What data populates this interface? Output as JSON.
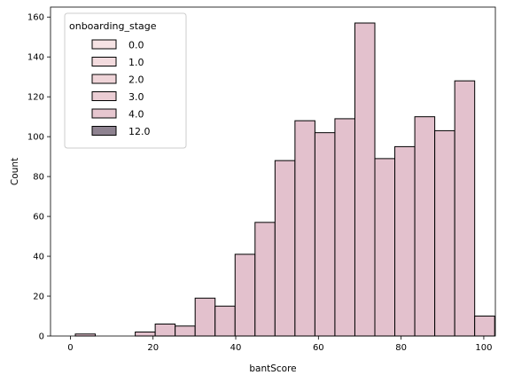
{
  "chart_data": {
    "type": "bar",
    "subtype": "histogram",
    "xlabel": "bantScore",
    "ylabel": "Count",
    "xlim": [
      -4.8,
      102.8
    ],
    "ylim": [
      0,
      165
    ],
    "xticks": [
      0,
      20,
      40,
      60,
      80,
      100
    ],
    "yticks": [
      0,
      20,
      40,
      60,
      80,
      100,
      120,
      140,
      160
    ],
    "bin_width": 4.83,
    "bins": [
      {
        "x0": 1.2,
        "x1": 6.03,
        "count": 1
      },
      {
        "x0": 6.03,
        "x1": 10.86,
        "count": 0
      },
      {
        "x0": 10.86,
        "x1": 15.69,
        "count": 0
      },
      {
        "x0": 15.69,
        "x1": 20.52,
        "count": 2
      },
      {
        "x0": 20.52,
        "x1": 25.35,
        "count": 6
      },
      {
        "x0": 25.35,
        "x1": 30.18,
        "count": 5
      },
      {
        "x0": 30.18,
        "x1": 35.01,
        "count": 19
      },
      {
        "x0": 35.01,
        "x1": 39.84,
        "count": 15
      },
      {
        "x0": 39.84,
        "x1": 44.67,
        "count": 41
      },
      {
        "x0": 44.67,
        "x1": 49.5,
        "count": 57
      },
      {
        "x0": 49.5,
        "x1": 54.33,
        "count": 88
      },
      {
        "x0": 54.33,
        "x1": 59.16,
        "count": 108
      },
      {
        "x0": 59.16,
        "x1": 63.99,
        "count": 102
      },
      {
        "x0": 63.99,
        "x1": 68.82,
        "count": 109
      },
      {
        "x0": 68.82,
        "x1": 73.65,
        "count": 157
      },
      {
        "x0": 73.65,
        "x1": 78.48,
        "count": 89
      },
      {
        "x0": 78.48,
        "x1": 83.31,
        "count": 95
      },
      {
        "x0": 83.31,
        "x1": 88.14,
        "count": 110
      },
      {
        "x0": 88.14,
        "x1": 92.97,
        "count": 103
      },
      {
        "x0": 92.97,
        "x1": 97.8,
        "count": 128
      },
      {
        "x0": 97.8,
        "x1": 102.63,
        "count": 10
      }
    ],
    "bar_color": "#e3c1cd",
    "edge_color": "#000000",
    "grid": false,
    "legend": {
      "title": "onboarding_stage",
      "placement": "top-left",
      "entries": [
        {
          "label": "0.0",
          "color": "#f6e3e4"
        },
        {
          "label": "1.0",
          "color": "#f3dbde"
        },
        {
          "label": "2.0",
          "color": "#efd4d8"
        },
        {
          "label": "3.0",
          "color": "#ebcdd4"
        },
        {
          "label": "4.0",
          "color": "#e6c6cf"
        },
        {
          "label": "12.0",
          "color": "#8e8290"
        }
      ]
    }
  }
}
